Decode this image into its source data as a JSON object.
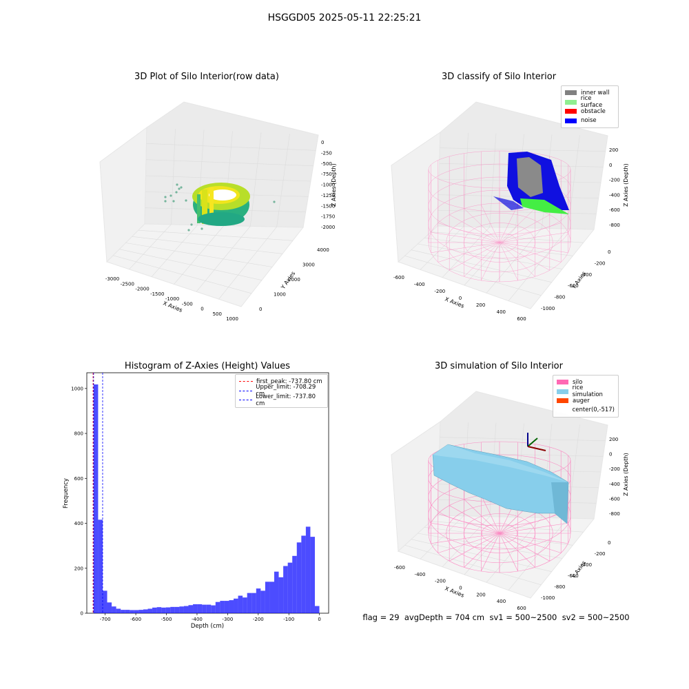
{
  "suptitle": "HSGGD05 2025-05-11 22:25:21",
  "panels": {
    "p1": {
      "title": "3D Plot of Silo Interior(row data)",
      "xlabel": "X Axies",
      "ylabel": "Y Axies",
      "zlabel": "Z Axies (Depth)",
      "xticks": [
        "-3000",
        "-2500",
        "-2000",
        "-1500",
        "-1000",
        "-500",
        "0",
        "500",
        "1000"
      ],
      "yticks": [
        "0",
        "1000",
        "2000",
        "3000",
        "4000"
      ],
      "zticks": [
        "0",
        "-250",
        "-500",
        "-750",
        "-1000",
        "-1250",
        "-1500",
        "-1750",
        "-2000"
      ]
    },
    "p2": {
      "title": "3D classify of Silo Interior",
      "xlabel": "X Axies",
      "ylabel": "Y Axies",
      "zlabel": "Z Axies (Depth)",
      "xticks": [
        "-600",
        "-400",
        "-200",
        "0",
        "200",
        "400",
        "600"
      ],
      "yticks": [
        "0",
        "-200",
        "-400",
        "-600",
        "-800",
        "-1000"
      ],
      "zticks": [
        "200",
        "0",
        "-200",
        "-400",
        "-600",
        "-800"
      ],
      "legend": [
        {
          "label": "inner wall",
          "color": "#808080"
        },
        {
          "label": "rice surface",
          "color": "#90ee90"
        },
        {
          "label": "obstacle",
          "color": "#ff0000"
        },
        {
          "label": "noise",
          "color": "#0000ff"
        }
      ]
    },
    "p4": {
      "title": "3D simulation of Silo Interior",
      "xlabel": "X Axies",
      "ylabel": "Y Axies",
      "zlabel": "Z Axies (Depth)",
      "xticks": [
        "-600",
        "-400",
        "-200",
        "0",
        "200",
        "400",
        "600"
      ],
      "yticks": [
        "0",
        "-200",
        "-400",
        "-600",
        "-800",
        "-1000"
      ],
      "zticks": [
        "200",
        "0",
        "-200",
        "-400",
        "-600",
        "-800"
      ],
      "legend": [
        {
          "label": "silo",
          "color": "#ff69b4"
        },
        {
          "label": "rice simulation",
          "color": "#87ceeb"
        },
        {
          "label": "auger",
          "color": "#ff4500"
        },
        {
          "label": "center(0,-517)",
          "color": "#ffffff"
        }
      ]
    }
  },
  "chart_data": {
    "type": "bar",
    "title": "Histogram of Z-Axies (Height) Values",
    "xlabel": "Depth (cm)",
    "ylabel": "Frequency",
    "xlim": [
      -760,
      30
    ],
    "ylim": [
      0,
      1070
    ],
    "xticks": [
      -700,
      -600,
      -500,
      -400,
      -300,
      -200,
      -100,
      0
    ],
    "yticks": [
      0,
      200,
      400,
      600,
      800,
      1000
    ],
    "bin_start": -737.8,
    "bin_width": 14.75,
    "values": [
      1018,
      416,
      100,
      48,
      30,
      20,
      15,
      15,
      14,
      14,
      15,
      17,
      20,
      25,
      27,
      25,
      26,
      28,
      28,
      30,
      32,
      36,
      40,
      40,
      38,
      38,
      35,
      50,
      55,
      55,
      58,
      65,
      78,
      70,
      90,
      90,
      110,
      100,
      140,
      140,
      185,
      160,
      210,
      225,
      255,
      315,
      345,
      385,
      340,
      32
    ],
    "bar_color": "#0000ff",
    "lines": [
      {
        "label": "first_peak: -737.80 cm",
        "value": -737.8,
        "color": "#ff0000"
      },
      {
        "label": "Upper_limit: -708.29 cm",
        "value": -708.29,
        "color": "#0000ff"
      },
      {
        "label": "Lower_limit: -737.80 cm",
        "value": -737.8,
        "color": "#0000ff"
      }
    ],
    "legend_position": "upper right"
  },
  "status": {
    "flag": "flag = 29",
    "avg": "avgDepth = 704 cm",
    "sv1": "sv1 = 500~2500",
    "sv2": "sv2 = 500~2500"
  }
}
